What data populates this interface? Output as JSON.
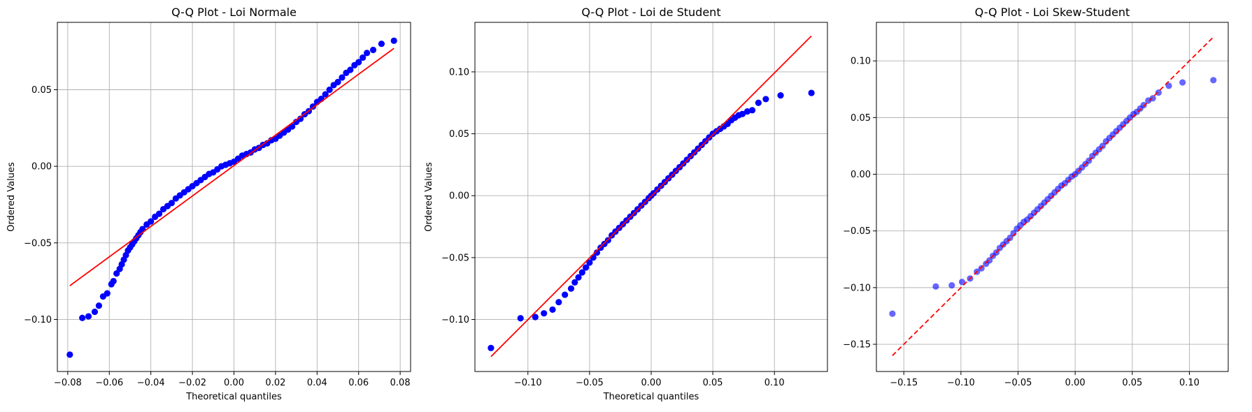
{
  "chart_data": [
    {
      "type": "scatter",
      "title": "Q-Q Plot - Loi Normale",
      "xlabel": "Theoretical quantiles",
      "ylabel": "Ordered Values",
      "xlim": [
        -0.085,
        0.085
      ],
      "ylim": [
        -0.134,
        0.094
      ],
      "xticks": [
        -0.08,
        -0.06,
        -0.04,
        -0.02,
        0.0,
        0.02,
        0.04,
        0.06,
        0.08
      ],
      "xtick_labels": [
        "−0.08",
        "−0.06",
        "−0.04",
        "−0.02",
        "0.00",
        "0.02",
        "0.04",
        "0.06",
        "0.08"
      ],
      "yticks": [
        -0.1,
        -0.05,
        0.0,
        0.05
      ],
      "ytick_labels": [
        "−0.10",
        "−0.05",
        "0.00",
        "0.05"
      ],
      "grid": true,
      "point_color": "#0000ff",
      "point_opacity": 1,
      "line_color": "#ff0000",
      "line_style": "solid",
      "fit_line": {
        "x": [
          -0.079,
          0.077
        ],
        "y": [
          -0.078,
          0.077
        ]
      },
      "points_x": [
        -0.079,
        -0.073,
        -0.07,
        -0.067,
        -0.065,
        -0.063,
        -0.061,
        -0.059,
        -0.058,
        -0.0565,
        -0.055,
        -0.054,
        -0.053,
        -0.052,
        -0.051,
        -0.05,
        -0.049,
        -0.048,
        -0.047,
        -0.046,
        -0.045,
        -0.044,
        -0.042,
        -0.04,
        -0.038,
        -0.036,
        -0.034,
        -0.032,
        -0.03,
        -0.028,
        -0.026,
        -0.024,
        -0.022,
        -0.02,
        -0.018,
        -0.016,
        -0.014,
        -0.012,
        -0.01,
        -0.008,
        -0.006,
        -0.004,
        -0.002,
        0.0,
        0.002,
        0.004,
        0.006,
        0.008,
        0.01,
        0.012,
        0.014,
        0.016,
        0.018,
        0.02,
        0.022,
        0.024,
        0.026,
        0.028,
        0.03,
        0.032,
        0.034,
        0.036,
        0.038,
        0.04,
        0.042,
        0.044,
        0.046,
        0.048,
        0.05,
        0.052,
        0.054,
        0.056,
        0.058,
        0.06,
        0.062,
        0.064,
        0.067,
        0.071,
        0.077
      ],
      "points_y": [
        -0.123,
        -0.099,
        -0.098,
        -0.095,
        -0.091,
        -0.085,
        -0.083,
        -0.077,
        -0.075,
        -0.07,
        -0.067,
        -0.064,
        -0.061,
        -0.058,
        -0.055,
        -0.053,
        -0.051,
        -0.049,
        -0.047,
        -0.045,
        -0.043,
        -0.041,
        -0.038,
        -0.036,
        -0.033,
        -0.031,
        -0.028,
        -0.026,
        -0.024,
        -0.021,
        -0.019,
        -0.017,
        -0.015,
        -0.013,
        -0.011,
        -0.009,
        -0.007,
        -0.005,
        -0.004,
        -0.002,
        0.0,
        0.001,
        0.002,
        0.003,
        0.005,
        0.007,
        0.008,
        0.009,
        0.011,
        0.012,
        0.014,
        0.015,
        0.017,
        0.018,
        0.02,
        0.022,
        0.024,
        0.026,
        0.029,
        0.031,
        0.034,
        0.036,
        0.039,
        0.042,
        0.044,
        0.047,
        0.05,
        0.053,
        0.055,
        0.058,
        0.061,
        0.063,
        0.066,
        0.068,
        0.071,
        0.074,
        0.076,
        0.08,
        0.082
      ]
    },
    {
      "type": "scatter",
      "title": "Q-Q Plot - Loi de Student",
      "xlabel": "Theoretical quantiles",
      "ylabel": "Ordered Values",
      "xlim": [
        -0.143,
        0.143
      ],
      "ylim": [
        -0.142,
        0.14
      ],
      "xticks": [
        -0.1,
        -0.05,
        0.0,
        0.05,
        0.1
      ],
      "xtick_labels": [
        "−0.10",
        "−0.05",
        "0.00",
        "0.05",
        "0.10"
      ],
      "yticks": [
        -0.1,
        -0.05,
        0.0,
        0.05,
        0.1
      ],
      "ytick_labels": [
        "−0.10",
        "−0.05",
        "0.00",
        "0.05",
        "0.10"
      ],
      "grid": true,
      "point_color": "#0000ff",
      "point_opacity": 1,
      "line_color": "#ff0000",
      "line_style": "solid",
      "fit_line": {
        "x": [
          -0.13,
          0.13
        ],
        "y": [
          -0.13,
          0.129
        ]
      },
      "points_x": [
        -0.13,
        -0.106,
        -0.094,
        -0.087,
        -0.08,
        -0.075,
        -0.07,
        -0.065,
        -0.062,
        -0.059,
        -0.056,
        -0.053,
        -0.05,
        -0.047,
        -0.044,
        -0.041,
        -0.038,
        -0.035,
        -0.032,
        -0.029,
        -0.026,
        -0.023,
        -0.02,
        -0.017,
        -0.014,
        -0.011,
        -0.008,
        -0.005,
        -0.002,
        0.0,
        0.002,
        0.005,
        0.008,
        0.011,
        0.014,
        0.017,
        0.02,
        0.023,
        0.026,
        0.029,
        0.032,
        0.035,
        0.038,
        0.041,
        0.044,
        0.047,
        0.05,
        0.053,
        0.056,
        0.059,
        0.062,
        0.065,
        0.068,
        0.071,
        0.074,
        0.078,
        0.082,
        0.087,
        0.093,
        0.105,
        0.13
      ],
      "points_y": [
        -0.123,
        -0.099,
        -0.098,
        -0.095,
        -0.092,
        -0.086,
        -0.08,
        -0.075,
        -0.07,
        -0.066,
        -0.062,
        -0.058,
        -0.054,
        -0.05,
        -0.046,
        -0.042,
        -0.039,
        -0.036,
        -0.032,
        -0.029,
        -0.026,
        -0.023,
        -0.02,
        -0.017,
        -0.014,
        -0.011,
        -0.008,
        -0.005,
        -0.002,
        0.0,
        0.002,
        0.005,
        0.008,
        0.011,
        0.014,
        0.017,
        0.02,
        0.023,
        0.026,
        0.029,
        0.032,
        0.035,
        0.038,
        0.041,
        0.044,
        0.047,
        0.05,
        0.052,
        0.054,
        0.056,
        0.058,
        0.061,
        0.063,
        0.065,
        0.066,
        0.068,
        0.069,
        0.075,
        0.078,
        0.081,
        0.083
      ]
    },
    {
      "type": "scatter",
      "title": "Q-Q Plot - Loi Skew-Student",
      "xlabel": "",
      "ylabel": "",
      "xlim": [
        -0.174,
        0.134
      ],
      "ylim": [
        -0.174,
        0.134
      ],
      "xticks": [
        -0.15,
        -0.1,
        -0.05,
        0.0,
        0.05,
        0.1
      ],
      "xtick_labels": [
        "−0.15",
        "−0.10",
        "−0.05",
        "0.00",
        "0.05",
        "0.10"
      ],
      "yticks": [
        -0.15,
        -0.1,
        -0.05,
        0.0,
        0.05,
        0.1
      ],
      "ytick_labels": [
        "−0.15",
        "−0.10",
        "−0.05",
        "0.00",
        "0.05",
        "0.10"
      ],
      "grid": true,
      "point_color": "#0000ff",
      "point_opacity": 0.6,
      "line_color": "#ff0000",
      "line_style": "dashed",
      "fit_line": {
        "x": [
          -0.16,
          0.121
        ],
        "y": [
          -0.16,
          0.121
        ]
      },
      "points_x": [
        -0.16,
        -0.122,
        -0.108,
        -0.099,
        -0.092,
        -0.086,
        -0.082,
        -0.078,
        -0.075,
        -0.072,
        -0.069,
        -0.066,
        -0.063,
        -0.06,
        -0.057,
        -0.054,
        -0.051,
        -0.048,
        -0.045,
        -0.042,
        -0.039,
        -0.036,
        -0.033,
        -0.03,
        -0.027,
        -0.024,
        -0.021,
        -0.018,
        -0.015,
        -0.012,
        -0.009,
        -0.006,
        -0.003,
        0.0,
        0.003,
        0.006,
        0.009,
        0.012,
        0.015,
        0.018,
        0.021,
        0.024,
        0.027,
        0.03,
        0.033,
        0.036,
        0.039,
        0.042,
        0.045,
        0.048,
        0.051,
        0.054,
        0.057,
        0.06,
        0.064,
        0.068,
        0.073,
        0.082,
        0.094,
        0.121
      ],
      "points_y": [
        -0.123,
        -0.099,
        -0.098,
        -0.095,
        -0.092,
        -0.086,
        -0.083,
        -0.079,
        -0.076,
        -0.072,
        -0.069,
        -0.065,
        -0.062,
        -0.059,
        -0.056,
        -0.052,
        -0.048,
        -0.045,
        -0.042,
        -0.04,
        -0.037,
        -0.034,
        -0.031,
        -0.028,
        -0.025,
        -0.022,
        -0.019,
        -0.016,
        -0.013,
        -0.01,
        -0.008,
        -0.005,
        -0.002,
        0.0,
        0.003,
        0.006,
        0.009,
        0.012,
        0.016,
        0.019,
        0.022,
        0.025,
        0.029,
        0.032,
        0.035,
        0.038,
        0.041,
        0.044,
        0.047,
        0.05,
        0.053,
        0.055,
        0.058,
        0.061,
        0.065,
        0.067,
        0.072,
        0.078,
        0.081,
        0.083
      ]
    }
  ]
}
